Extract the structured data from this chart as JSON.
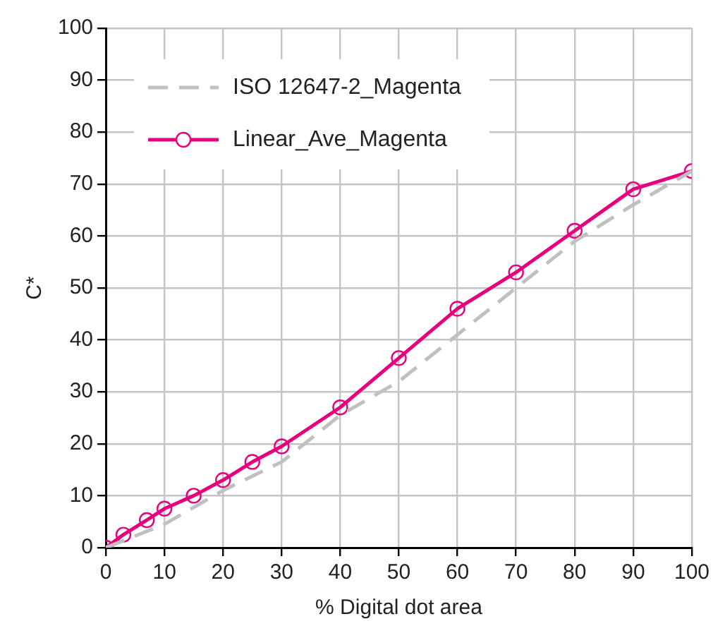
{
  "chart_data": {
    "type": "line",
    "xlabel": "% Digital dot area",
    "ylabel": "C*",
    "xlim": [
      0,
      100
    ],
    "ylim": [
      0,
      100
    ],
    "xticks": [
      0,
      10,
      20,
      30,
      40,
      50,
      60,
      70,
      80,
      90,
      100
    ],
    "yticks": [
      0,
      10,
      20,
      30,
      40,
      50,
      60,
      70,
      80,
      90,
      100
    ],
    "grid": true,
    "legend": "top left",
    "series": [
      {
        "name": "ISO 12647-2_Magenta",
        "color": "#c0c0c0",
        "line_style": "dashed",
        "marker": "none",
        "x": [
          0,
          10,
          20,
          30,
          40,
          50,
          60,
          70,
          80,
          90,
          100
        ],
        "values": [
          0,
          4.5,
          11,
          16.5,
          25.5,
          32,
          41,
          50,
          59,
          66,
          72.5
        ]
      },
      {
        "name": "Linear_Ave_Magenta",
        "color": "#e6007e",
        "line_style": "solid",
        "marker": "circle",
        "x": [
          0,
          3,
          7,
          10,
          15,
          20,
          25,
          30,
          40,
          50,
          60,
          70,
          80,
          90,
          100
        ],
        "values": [
          0,
          2.5,
          5.3,
          7.5,
          10,
          13,
          16.5,
          19.5,
          27,
          36.5,
          46,
          53,
          61,
          69,
          72.5
        ]
      }
    ]
  }
}
